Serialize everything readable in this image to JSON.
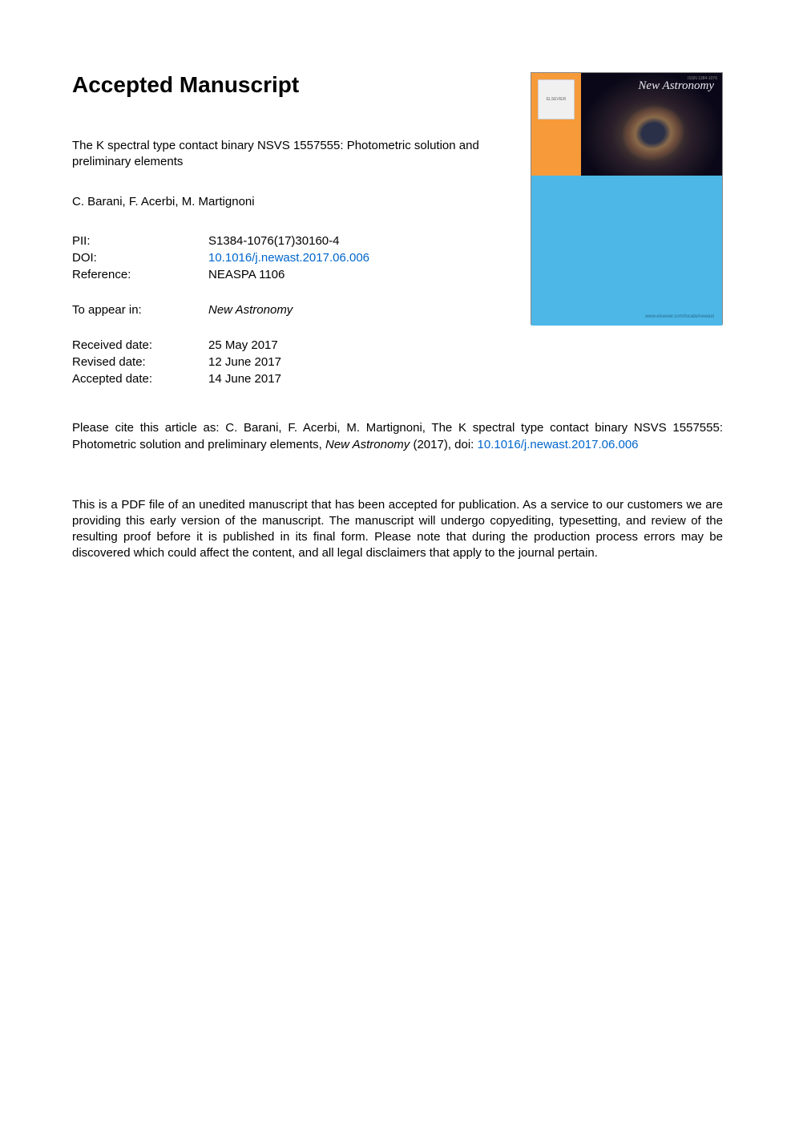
{
  "heading": "Accepted Manuscript",
  "article": {
    "title": "The K spectral type contact binary NSVS 1557555: Photometric solution and preliminary elements",
    "authors": "C. Barani, F. Acerbi, M. Martignoni"
  },
  "metadata": {
    "pii_label": "PII:",
    "pii_value": "S1384-1076(17)30160-4",
    "doi_label": "DOI:",
    "doi_value": "10.1016/j.newast.2017.06.006",
    "reference_label": "Reference:",
    "reference_value": "NEASPA 1106"
  },
  "appear": {
    "label": "To appear in:",
    "journal": "New Astronomy"
  },
  "dates": {
    "received_label": "Received date:",
    "received_value": "25 May 2017",
    "revised_label": "Revised date:",
    "revised_value": "12 June 2017",
    "accepted_label": "Accepted date:",
    "accepted_value": "14 June 2017"
  },
  "citation": {
    "prefix": "Please cite this article as: C. Barani, F. Acerbi, M. Martignoni, The K spectral type contact binary NSVS 1557555: Photometric solution and preliminary elements, ",
    "journal": "New Astronomy",
    "year_doi": " (2017), doi: ",
    "doi_link": "10.1016/j.newast.2017.06.006"
  },
  "disclaimer": "This is a PDF file of an unedited manuscript that has been accepted for publication. As a service to our customers we are providing this early version of the manuscript. The manuscript will undergo copyediting, typesetting, and review of the resulting proof before it is published in its final form. Please note that during the production process errors may be discovered which could affect the content, and all legal disclaimers that apply to the journal pertain.",
  "cover": {
    "journal_title": "New Astronomy",
    "publisher_logo": "ELSEVIER",
    "issn": "ISSN 1384-1076",
    "url": "www.elsevier.com/locate/newast",
    "colors": {
      "orange": "#f79a3a",
      "dark_bg": "#0a0818",
      "light_blue": "#4db8e8"
    }
  },
  "colors": {
    "link": "#0066cc",
    "text": "#000000",
    "background": "#ffffff"
  },
  "typography": {
    "heading_fontsize": 28,
    "body_fontsize": 15,
    "font_family": "Arial, Helvetica, sans-serif"
  }
}
